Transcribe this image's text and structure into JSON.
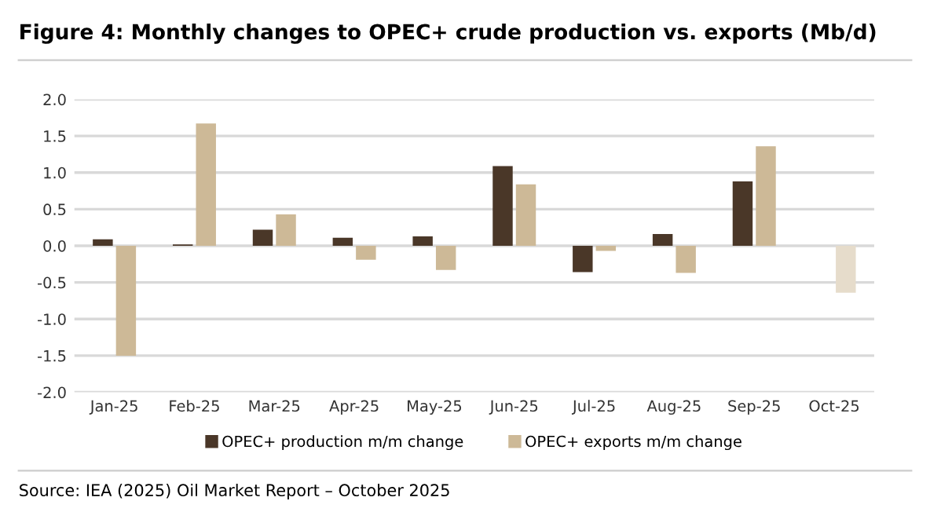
{
  "chart_data": {
    "type": "bar",
    "title": "Figure 4: Monthly changes to OPEC+ crude production vs. exports (Mb/d)",
    "categories": [
      "Jan-25",
      "Feb-25",
      "Mar-25",
      "Apr-25",
      "May-25",
      "Jun-25",
      "Jul-25",
      "Aug-25",
      "Sep-25",
      "Oct-25"
    ],
    "series": [
      {
        "name": "OPEC+ production m/m change",
        "color": "#4a3728",
        "values": [
          0.09,
          0.02,
          0.22,
          0.11,
          0.13,
          1.09,
          -0.36,
          0.16,
          0.88,
          null
        ]
      },
      {
        "name": "OPEC+ exports m/m change",
        "color": "#cdb997",
        "colors": [
          "#cdb997",
          "#cdb997",
          "#cdb997",
          "#cdb997",
          "#cdb997",
          "#cdb997",
          "#cdb997",
          "#cdb997",
          "#cdb997",
          "#e6dccb"
        ],
        "values": [
          -1.5,
          1.67,
          0.43,
          -0.19,
          -0.33,
          0.84,
          -0.07,
          -0.37,
          1.36,
          -0.64
        ]
      }
    ],
    "ylim": [
      -2.0,
      2.0
    ],
    "yticks": [
      {
        "value": -2.0,
        "label": "-2.0"
      },
      {
        "value": -1.5,
        "label": "-1.5"
      },
      {
        "value": -1.0,
        "label": "-1.0"
      },
      {
        "value": -0.5,
        "label": "-0.5"
      },
      {
        "value": 0.0,
        "label": "0.0"
      },
      {
        "value": 0.5,
        "label": "0.5"
      },
      {
        "value": 1.0,
        "label": "1.0"
      },
      {
        "value": 1.5,
        "label": "1.5"
      },
      {
        "value": 2.0,
        "label": "2.0"
      }
    ],
    "grid": "y",
    "legend": "bottom",
    "annotations": [
      "Source: IEA (2025) Oil Market Report – October 2025"
    ]
  }
}
